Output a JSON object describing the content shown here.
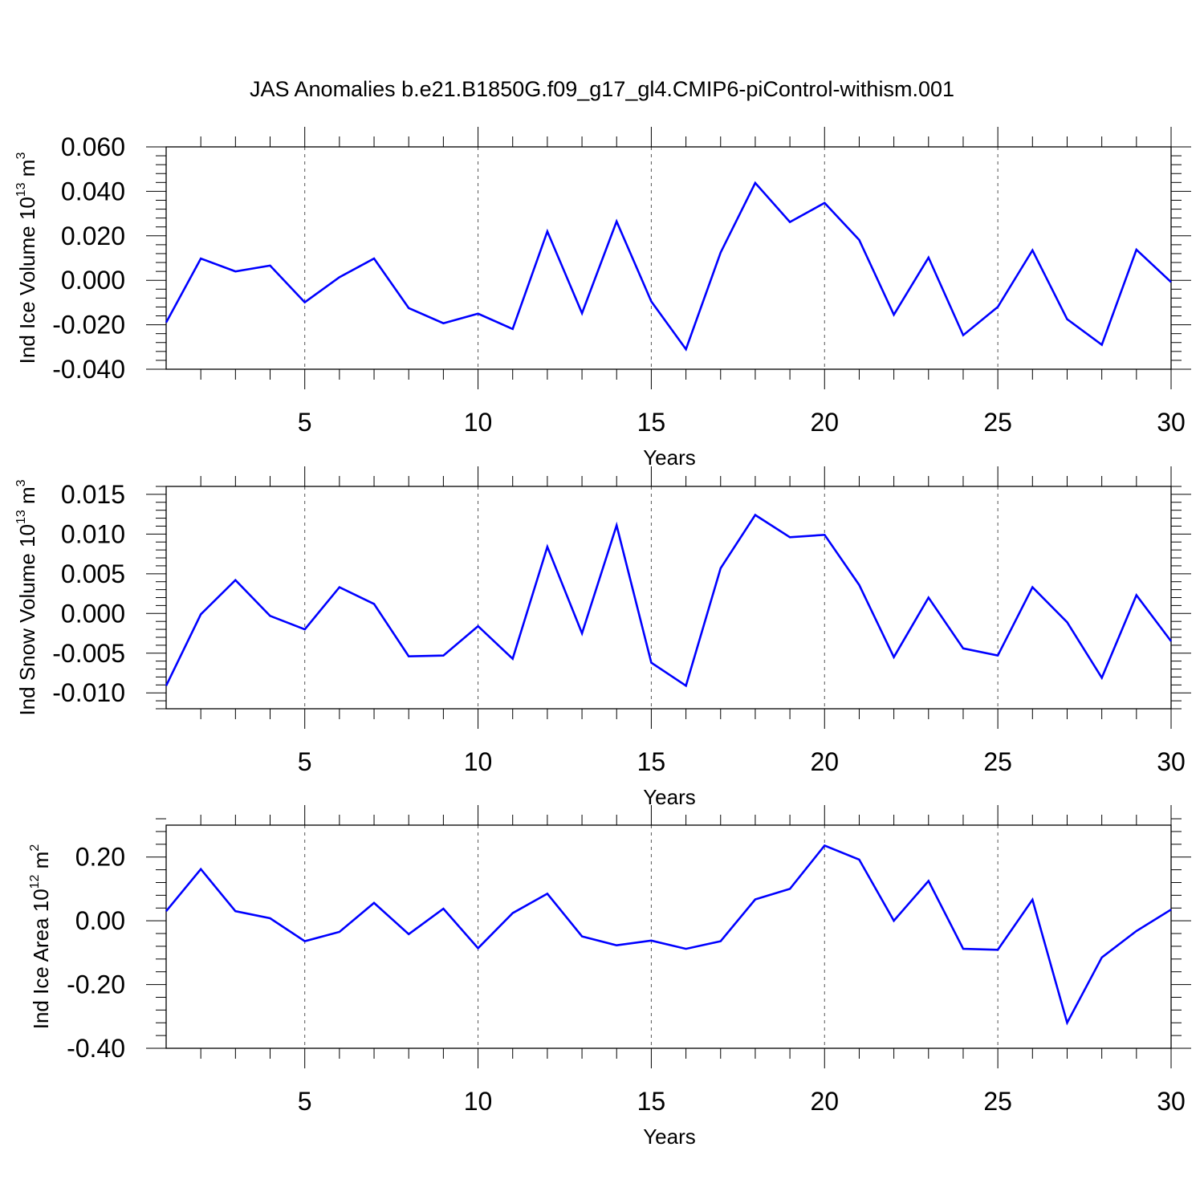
{
  "title": "JAS Anomalies b.e21.B1850G.f09_g17_gl4.CMIP6-piControl-withism.001",
  "chart_data": [
    {
      "type": "line",
      "title": "JAS Anomalies b.e21.B1850G.f09_g17_gl4.CMIP6-piControl-withism.001",
      "xlabel": "Years",
      "ylabel": {
        "text": "Ind Ice Volume 10",
        "exp": "13",
        "unit": " m",
        "unit_exp": "3"
      },
      "xlim": [
        1,
        30
      ],
      "ylim": [
        -0.04,
        0.06
      ],
      "x_ticks": [
        5,
        10,
        15,
        20,
        25,
        30
      ],
      "y_ticks": [
        -0.04,
        -0.02,
        0.0,
        0.02,
        0.04,
        0.06
      ],
      "y_tick_labels": [
        "-0.040",
        "-0.020",
        "0.000",
        "0.020",
        "0.040",
        "0.060"
      ],
      "grid": "vertical dashed at major x ticks",
      "line_color": "#0000ff",
      "x": [
        1,
        2,
        3,
        4,
        5,
        6,
        7,
        8,
        9,
        10,
        11,
        12,
        13,
        14,
        15,
        16,
        17,
        18,
        19,
        20,
        21,
        22,
        23,
        24,
        25,
        26,
        27,
        28,
        29,
        30
      ],
      "values": [
        -0.019,
        0.0098,
        0.004,
        0.0066,
        -0.0099,
        0.0014,
        0.0098,
        -0.0125,
        -0.0193,
        -0.015,
        -0.0219,
        0.022,
        -0.0148,
        0.0265,
        -0.0095,
        -0.031,
        0.0125,
        0.0438,
        0.0262,
        0.0348,
        0.0182,
        -0.0155,
        0.0102,
        -0.0247,
        -0.012,
        0.0135,
        -0.0175,
        -0.029,
        0.0138,
        -0.0008
      ]
    },
    {
      "type": "line",
      "xlabel": "Years",
      "ylabel": {
        "text": "Ind Snow Volume 10",
        "exp": "13",
        "unit": " m",
        "unit_exp": "3"
      },
      "xlim": [
        1,
        30
      ],
      "ylim": [
        -0.012,
        0.016
      ],
      "x_ticks": [
        5,
        10,
        15,
        20,
        25,
        30
      ],
      "y_ticks": [
        -0.01,
        -0.005,
        0.0,
        0.005,
        0.01,
        0.015
      ],
      "y_tick_labels": [
        "-0.010",
        "-0.005",
        "0.000",
        "0.005",
        "0.010",
        "0.015"
      ],
      "grid": "vertical dashed at major x ticks",
      "line_color": "#0000ff",
      "x": [
        1,
        2,
        3,
        4,
        5,
        6,
        7,
        8,
        9,
        10,
        11,
        12,
        13,
        14,
        15,
        16,
        17,
        18,
        19,
        20,
        21,
        22,
        23,
        24,
        25,
        26,
        27,
        28,
        29,
        30
      ],
      "values": [
        -0.0091,
        -0.0001,
        0.0042,
        -0.0003,
        -0.002,
        0.0033,
        0.0012,
        -0.0054,
        -0.0053,
        -0.0016,
        -0.0057,
        0.0084,
        -0.0025,
        0.0111,
        -0.0062,
        -0.0091,
        0.0057,
        0.0124,
        0.0096,
        0.0099,
        0.0036,
        -0.0055,
        0.002,
        -0.0044,
        -0.0053,
        0.0033,
        -0.0011,
        -0.0081,
        0.0023,
        -0.0035
      ]
    },
    {
      "type": "line",
      "xlabel": "Years",
      "ylabel": {
        "text": "Ind Ice Area 10",
        "exp": "12",
        "unit": " m",
        "unit_exp": "2"
      },
      "xlim": [
        1,
        30
      ],
      "ylim": [
        -0.4,
        0.3
      ],
      "x_ticks": [
        5,
        10,
        15,
        20,
        25,
        30
      ],
      "y_ticks": [
        -0.4,
        -0.2,
        0.0,
        0.2
      ],
      "y_tick_labels": [
        "-0.40",
        "-0.20",
        "0.00",
        "0.20"
      ],
      "grid": "vertical dashed at major x ticks",
      "line_color": "#0000ff",
      "x": [
        1,
        2,
        3,
        4,
        5,
        6,
        7,
        8,
        9,
        10,
        11,
        12,
        13,
        14,
        15,
        16,
        17,
        18,
        19,
        20,
        21,
        22,
        23,
        24,
        25,
        26,
        27,
        28,
        29,
        30
      ],
      "values": [
        0.03,
        0.162,
        0.03,
        0.008,
        -0.064,
        -0.035,
        0.056,
        -0.042,
        0.038,
        -0.086,
        0.024,
        0.085,
        -0.049,
        -0.077,
        -0.062,
        -0.088,
        -0.064,
        0.067,
        0.1,
        0.236,
        0.192,
        0.0,
        0.125,
        -0.088,
        -0.091,
        0.066,
        -0.32,
        -0.115,
        -0.032,
        0.035
      ]
    }
  ]
}
